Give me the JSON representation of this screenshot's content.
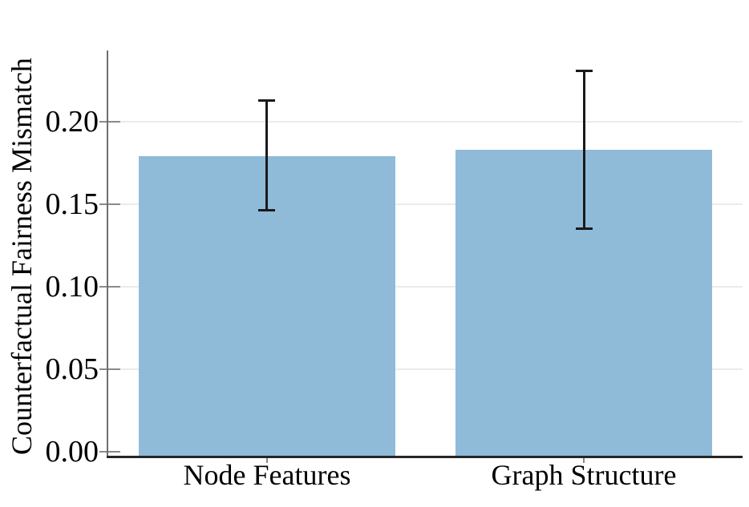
{
  "chart_data": {
    "type": "bar",
    "title": "",
    "xlabel": "",
    "ylabel": "Counterfactual Fairness Mismatch",
    "categories": [
      "Node Features",
      "Graph Structure"
    ],
    "values": [
      0.179,
      0.183
    ],
    "error_low": [
      0.146,
      0.135
    ],
    "error_high": [
      0.213,
      0.231
    ],
    "ytick_labels": [
      "0.00",
      "0.05",
      "0.10",
      "0.15",
      "0.20"
    ],
    "ytick_values": [
      0.0,
      0.05,
      0.1,
      0.15,
      0.2
    ],
    "ylim": [
      -0.003,
      0.243
    ],
    "grid": true,
    "legend": "none",
    "colors": {
      "bar": "#8FBBD9",
      "errorbar": "#1a1a1a",
      "gridline": "#ebebeb",
      "left_spine": "#6e6e6e",
      "bottom_spine": "#262626",
      "tick": "#8a8a8a",
      "text": "#000000"
    }
  }
}
